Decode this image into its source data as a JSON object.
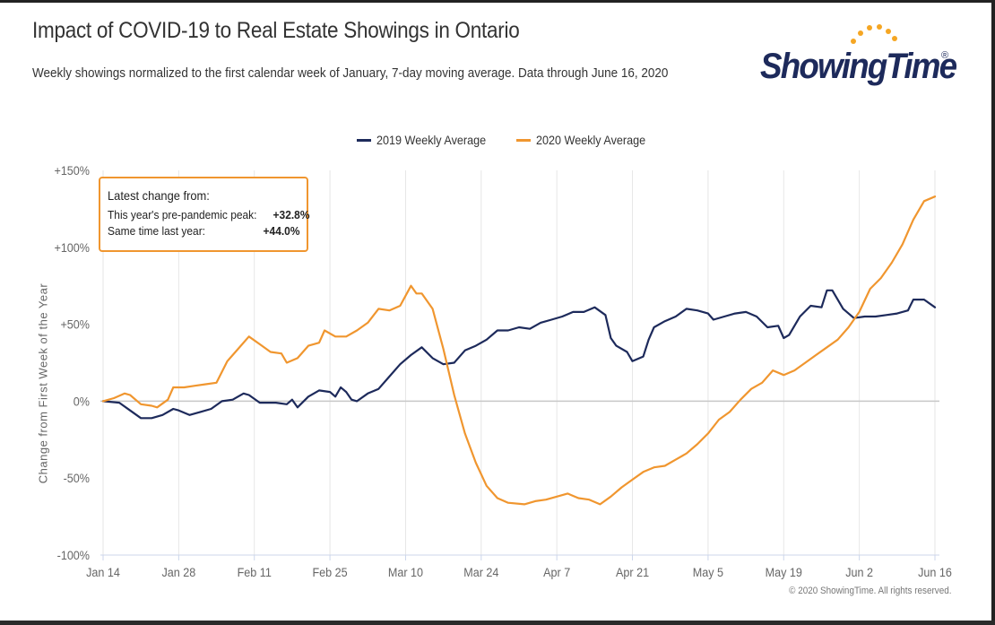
{
  "header": {
    "title": "Impact of COVID-19 to Real Estate Showings in Ontario",
    "subtitle": "Weekly showings normalized to the first calendar week of January, 7-day moving average. Data through June 16, 2020"
  },
  "logo": {
    "text": "ShowingTime",
    "mark": "®",
    "colors": {
      "text": "#1d2a5b",
      "dots": "#f5a623"
    }
  },
  "infobox": {
    "heading": "Latest change from:",
    "rows": [
      {
        "label": "This year's pre-pandemic peak:",
        "value": "+32.8%"
      },
      {
        "label": "Same time last year:",
        "value": "+44.0%"
      }
    ]
  },
  "credits": "© 2020 ShowingTime. All rights reserved.",
  "chart_data": {
    "type": "line",
    "title": "Impact of COVID-19 to Real Estate Showings in Ontario",
    "subtitle": "Weekly showings normalized to the first calendar week of January, 7-day moving average. Data through June 16, 2020",
    "ylabel": "Change from First Week of the Year",
    "xlabel": "",
    "ylim": [
      -100,
      150
    ],
    "yticks": [
      -100,
      -50,
      0,
      50,
      100,
      150
    ],
    "ytick_labels": [
      "-100%",
      "-50%",
      "0%",
      "+50%",
      "+100%",
      "+150%"
    ],
    "xlim": [
      "2020-01-14",
      "2020-06-16"
    ],
    "xticks": [
      "2020-01-14",
      "2020-01-28",
      "2020-02-11",
      "2020-02-25",
      "2020-03-10",
      "2020-03-24",
      "2020-04-07",
      "2020-04-21",
      "2020-05-05",
      "2020-05-19",
      "2020-06-02",
      "2020-06-16"
    ],
    "xtick_labels": [
      "Jan 14",
      "Jan 28",
      "Feb 11",
      "Feb 25",
      "Mar 10",
      "Mar 24",
      "Apr 7",
      "Apr 21",
      "May 5",
      "May 19",
      "Jun 2",
      "Jun 16"
    ],
    "grid": "vertical",
    "legend": "top-center",
    "series": [
      {
        "name": "2019 Weekly Average",
        "color": "#1d2a5b",
        "points": [
          [
            "2020-01-14",
            0
          ],
          [
            "2020-01-17",
            -1
          ],
          [
            "2020-01-19",
            -6
          ],
          [
            "2020-01-21",
            -11
          ],
          [
            "2020-01-23",
            -11
          ],
          [
            "2020-01-25",
            -9
          ],
          [
            "2020-01-27",
            -5
          ],
          [
            "2020-01-28",
            -6
          ],
          [
            "2020-01-30",
            -9
          ],
          [
            "2020-02-01",
            -7
          ],
          [
            "2020-02-03",
            -5
          ],
          [
            "2020-02-05",
            0
          ],
          [
            "2020-02-07",
            1
          ],
          [
            "2020-02-09",
            5
          ],
          [
            "2020-02-10",
            4
          ],
          [
            "2020-02-12",
            -1
          ],
          [
            "2020-02-15",
            -1
          ],
          [
            "2020-02-17",
            -2
          ],
          [
            "2020-02-18",
            1
          ],
          [
            "2020-02-19",
            -4
          ],
          [
            "2020-02-21",
            3
          ],
          [
            "2020-02-23",
            7
          ],
          [
            "2020-02-25",
            6
          ],
          [
            "2020-02-26",
            3
          ],
          [
            "2020-02-27",
            9
          ],
          [
            "2020-02-28",
            6
          ],
          [
            "2020-02-29",
            1
          ],
          [
            "2020-03-01",
            0
          ],
          [
            "2020-03-03",
            5
          ],
          [
            "2020-03-05",
            8
          ],
          [
            "2020-03-07",
            16
          ],
          [
            "2020-03-09",
            24
          ],
          [
            "2020-03-11",
            30
          ],
          [
            "2020-03-13",
            35
          ],
          [
            "2020-03-15",
            28
          ],
          [
            "2020-03-17",
            24
          ],
          [
            "2020-03-19",
            25
          ],
          [
            "2020-03-21",
            33
          ],
          [
            "2020-03-23",
            36
          ],
          [
            "2020-03-25",
            40
          ],
          [
            "2020-03-27",
            46
          ],
          [
            "2020-03-29",
            46
          ],
          [
            "2020-03-31",
            48
          ],
          [
            "2020-04-02",
            47
          ],
          [
            "2020-04-04",
            51
          ],
          [
            "2020-04-06",
            53
          ],
          [
            "2020-04-08",
            55
          ],
          [
            "2020-04-10",
            58
          ],
          [
            "2020-04-12",
            58
          ],
          [
            "2020-04-14",
            61
          ],
          [
            "2020-04-16",
            56
          ],
          [
            "2020-04-17",
            41
          ],
          [
            "2020-04-18",
            36
          ],
          [
            "2020-04-20",
            32
          ],
          [
            "2020-04-21",
            26
          ],
          [
            "2020-04-23",
            29
          ],
          [
            "2020-04-24",
            40
          ],
          [
            "2020-04-25",
            48
          ],
          [
            "2020-04-27",
            52
          ],
          [
            "2020-04-29",
            55
          ],
          [
            "2020-05-01",
            60
          ],
          [
            "2020-05-03",
            59
          ],
          [
            "2020-05-05",
            57
          ],
          [
            "2020-05-06",
            53
          ],
          [
            "2020-05-08",
            55
          ],
          [
            "2020-05-10",
            57
          ],
          [
            "2020-05-12",
            58
          ],
          [
            "2020-05-14",
            55
          ],
          [
            "2020-05-16",
            48
          ],
          [
            "2020-05-18",
            49
          ],
          [
            "2020-05-19",
            41
          ],
          [
            "2020-05-20",
            43
          ],
          [
            "2020-05-22",
            55
          ],
          [
            "2020-05-24",
            62
          ],
          [
            "2020-05-26",
            61
          ],
          [
            "2020-05-27",
            72
          ],
          [
            "2020-05-28",
            72
          ],
          [
            "2020-05-30",
            60
          ],
          [
            "2020-06-01",
            54
          ],
          [
            "2020-06-03",
            55
          ],
          [
            "2020-06-05",
            55
          ],
          [
            "2020-06-07",
            56
          ],
          [
            "2020-06-09",
            57
          ],
          [
            "2020-06-11",
            59
          ],
          [
            "2020-06-12",
            66
          ],
          [
            "2020-06-14",
            66
          ],
          [
            "2020-06-16",
            61
          ]
        ]
      },
      {
        "name": "2020 Weekly Average",
        "color": "#f0962f",
        "points": [
          [
            "2020-01-14",
            0
          ],
          [
            "2020-01-16",
            2
          ],
          [
            "2020-01-18",
            5
          ],
          [
            "2020-01-19",
            4
          ],
          [
            "2020-01-21",
            -2
          ],
          [
            "2020-01-23",
            -3
          ],
          [
            "2020-01-24",
            -4
          ],
          [
            "2020-01-26",
            1
          ],
          [
            "2020-01-27",
            9
          ],
          [
            "2020-01-29",
            9
          ],
          [
            "2020-01-31",
            10
          ],
          [
            "2020-02-02",
            11
          ],
          [
            "2020-02-04",
            12
          ],
          [
            "2020-02-06",
            26
          ],
          [
            "2020-02-08",
            34
          ],
          [
            "2020-02-10",
            42
          ],
          [
            "2020-02-12",
            37
          ],
          [
            "2020-02-14",
            32
          ],
          [
            "2020-02-16",
            31
          ],
          [
            "2020-02-17",
            25
          ],
          [
            "2020-02-19",
            28
          ],
          [
            "2020-02-21",
            36
          ],
          [
            "2020-02-23",
            38
          ],
          [
            "2020-02-24",
            46
          ],
          [
            "2020-02-26",
            42
          ],
          [
            "2020-02-28",
            42
          ],
          [
            "2020-03-01",
            46
          ],
          [
            "2020-03-03",
            51
          ],
          [
            "2020-03-05",
            60
          ],
          [
            "2020-03-07",
            59
          ],
          [
            "2020-03-09",
            62
          ],
          [
            "2020-03-11",
            75
          ],
          [
            "2020-03-12",
            70
          ],
          [
            "2020-03-13",
            70
          ],
          [
            "2020-03-15",
            60
          ],
          [
            "2020-03-17",
            34
          ],
          [
            "2020-03-19",
            4
          ],
          [
            "2020-03-21",
            -21
          ],
          [
            "2020-03-23",
            -40
          ],
          [
            "2020-03-25",
            -55
          ],
          [
            "2020-03-27",
            -63
          ],
          [
            "2020-03-29",
            -66
          ],
          [
            "2020-04-01",
            -67
          ],
          [
            "2020-04-03",
            -65
          ],
          [
            "2020-04-05",
            -64
          ],
          [
            "2020-04-07",
            -62
          ],
          [
            "2020-04-09",
            -60
          ],
          [
            "2020-04-11",
            -63
          ],
          [
            "2020-04-13",
            -64
          ],
          [
            "2020-04-15",
            -67
          ],
          [
            "2020-04-17",
            -62
          ],
          [
            "2020-04-19",
            -56
          ],
          [
            "2020-04-21",
            -51
          ],
          [
            "2020-04-23",
            -46
          ],
          [
            "2020-04-25",
            -43
          ],
          [
            "2020-04-27",
            -42
          ],
          [
            "2020-04-29",
            -38
          ],
          [
            "2020-05-01",
            -34
          ],
          [
            "2020-05-03",
            -28
          ],
          [
            "2020-05-05",
            -21
          ],
          [
            "2020-05-07",
            -12
          ],
          [
            "2020-05-09",
            -7
          ],
          [
            "2020-05-11",
            1
          ],
          [
            "2020-05-13",
            8
          ],
          [
            "2020-05-15",
            12
          ],
          [
            "2020-05-17",
            20
          ],
          [
            "2020-05-19",
            17
          ],
          [
            "2020-05-21",
            20
          ],
          [
            "2020-05-23",
            25
          ],
          [
            "2020-05-25",
            30
          ],
          [
            "2020-05-27",
            35
          ],
          [
            "2020-05-29",
            40
          ],
          [
            "2020-05-31",
            48
          ],
          [
            "2020-06-02",
            58
          ],
          [
            "2020-06-04",
            73
          ],
          [
            "2020-06-06",
            80
          ],
          [
            "2020-06-08",
            90
          ],
          [
            "2020-06-10",
            102
          ],
          [
            "2020-06-12",
            118
          ],
          [
            "2020-06-14",
            130
          ],
          [
            "2020-06-16",
            133
          ]
        ]
      }
    ]
  }
}
